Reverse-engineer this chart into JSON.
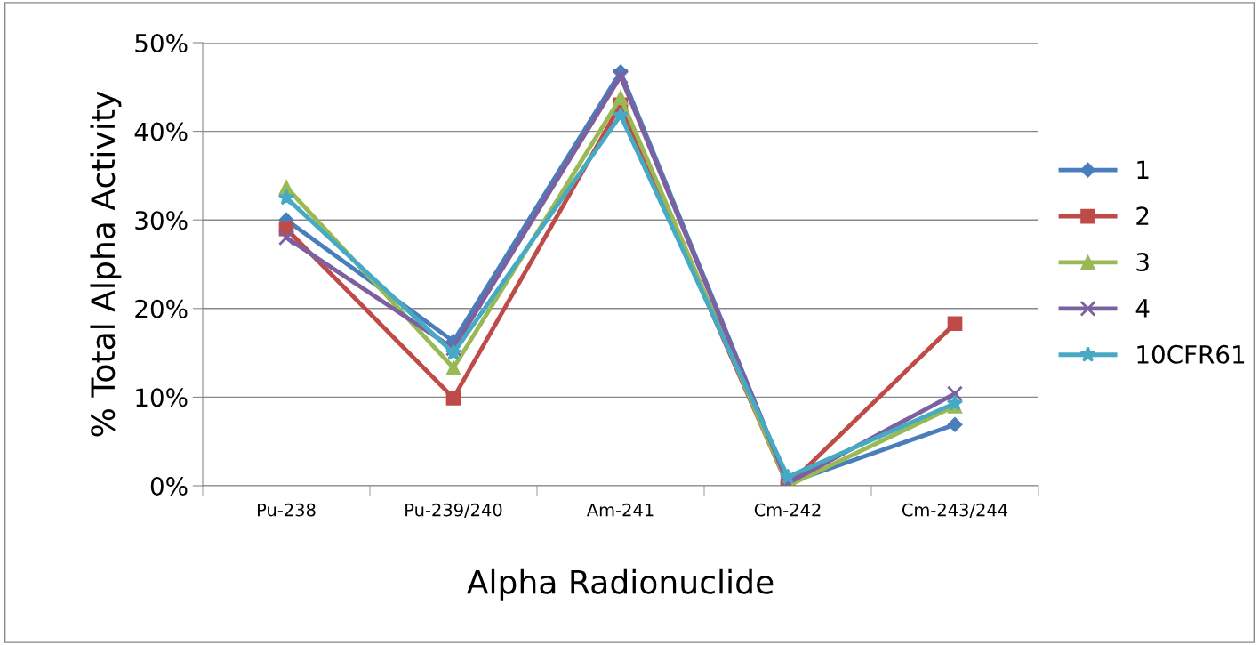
{
  "chart_data": {
    "type": "line",
    "xlabel": "Alpha Radionuclide",
    "ylabel": "% Total Alpha Activity",
    "categories": [
      "Pu-238",
      "Pu-239/240",
      "Am-241",
      "Cm-242",
      "Cm-243/244"
    ],
    "series": [
      {
        "name": "1",
        "color": "#4a7ebb",
        "marker": "diamond",
        "values": [
          30,
          16.3,
          46.7,
          0.3,
          6.9
        ]
      },
      {
        "name": "2",
        "color": "#be4b48",
        "marker": "square",
        "values": [
          29,
          9.9,
          43,
          0,
          18.3
        ]
      },
      {
        "name": "3",
        "color": "#98b954",
        "marker": "triangle",
        "values": [
          33.7,
          13.3,
          43.8,
          0,
          9
        ]
      },
      {
        "name": "4",
        "color": "#7d60a0",
        "marker": "cross",
        "values": [
          28,
          15.5,
          46.2,
          0.3,
          10.4
        ]
      },
      {
        "name": "10CFR61",
        "color": "#46aac5",
        "marker": "star",
        "values": [
          32.5,
          15,
          41.8,
          1,
          9.3
        ]
      }
    ],
    "ylim": [
      0,
      50
    ],
    "yticks": [
      {
        "value": 0,
        "label": "0%"
      },
      {
        "value": 10,
        "label": "10%"
      },
      {
        "value": 20,
        "label": "20%"
      },
      {
        "value": 30,
        "label": "30%"
      },
      {
        "value": 40,
        "label": "40%"
      },
      {
        "value": 50,
        "label": "50%"
      }
    ],
    "grid": "y",
    "legend": "right",
    "line_style": "solid"
  }
}
